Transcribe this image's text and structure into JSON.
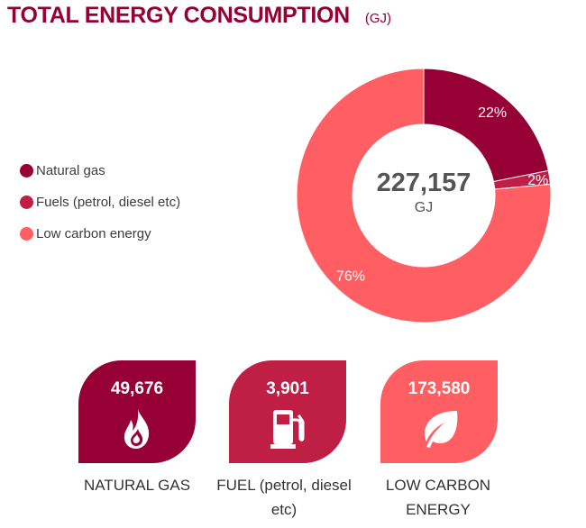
{
  "header": {
    "title": "TOTAL ENERGY CONSUMPTION",
    "unit": "(GJ)"
  },
  "legend": [
    {
      "label": "Natural gas",
      "color": "#960035"
    },
    {
      "label": "Fuels (petrol, diesel etc)",
      "color": "#bf1f45"
    },
    {
      "label": "Low carbon energy",
      "color": "#ff5e62"
    }
  ],
  "chart_data": {
    "type": "pie",
    "donut": true,
    "center_value": "227,157",
    "center_unit": "GJ",
    "slices": [
      {
        "name": "Natural gas",
        "value": 49676,
        "label": "22%",
        "color": "#960035"
      },
      {
        "name": "Fuels (petrol, diesel etc)",
        "value": 3901,
        "label": "2%",
        "color": "#bf1f45"
      },
      {
        "name": "Low carbon energy",
        "value": 173580,
        "label": "76%",
        "color": "#ff5e62"
      }
    ],
    "legend_position": "left"
  },
  "cards": [
    {
      "value": "49,676",
      "caption": "NATURAL GAS",
      "icon": "flame-icon",
      "color": "#960035"
    },
    {
      "value": "3,901",
      "caption": "FUEL (petrol, diesel etc)",
      "icon": "fuel-pump-icon",
      "color": "#bf1f45"
    },
    {
      "value": "173,580",
      "caption": "LOW CARBON ENERGY",
      "icon": "leaf-icon",
      "color": "#ff5e62"
    }
  ]
}
